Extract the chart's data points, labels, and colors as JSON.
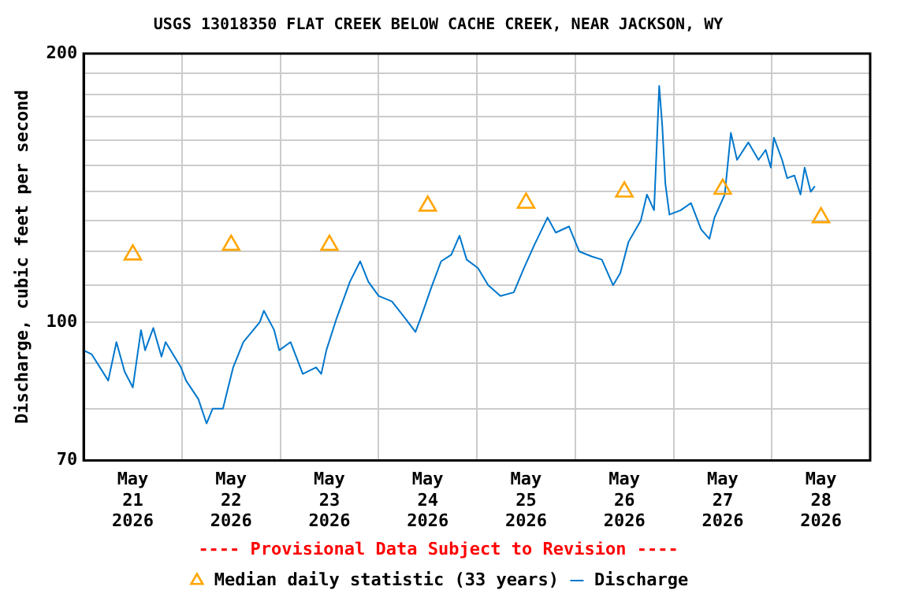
{
  "chart_data": {
    "type": "line",
    "title": "USGS 13018350 FLAT CREEK BELOW CACHE CREEK, NEAR JACKSON, WY",
    "ylabel": "Discharge, cubic feet per second",
    "annotations": [
      "---- Provisional Data Subject to Revision ----"
    ],
    "log": "y",
    "grid": true,
    "legend": "bottom",
    "xlim": [
      "2026-05-21T00:00",
      "2026-05-29T00:00"
    ],
    "xticks": [
      {
        "value": "2026-05-21T12:00",
        "label": "May\n21\n2026"
      },
      {
        "value": "2026-05-22T00:00",
        "label": null
      },
      {
        "value": "2026-05-22T12:00",
        "label": "May\n22\n2026"
      },
      {
        "value": "2026-05-23T00:00",
        "label": null
      },
      {
        "value": "2026-05-23T12:00",
        "label": "May\n23\n2026"
      },
      {
        "value": "2026-05-24T00:00",
        "label": null
      },
      {
        "value": "2026-05-24T12:00",
        "label": "May\n24\n2026"
      },
      {
        "value": "2026-05-25T00:00",
        "label": null
      },
      {
        "value": "2026-05-25T12:00",
        "label": "May\n25\n2026"
      },
      {
        "value": "2026-05-26T00:00",
        "label": null
      },
      {
        "value": "2026-05-26T12:00",
        "label": "May\n26\n2026"
      },
      {
        "value": "2026-05-27T00:00",
        "label": null
      },
      {
        "value": "2026-05-27T12:00",
        "label": "May\n27\n2026"
      },
      {
        "value": "2026-05-28T00:00",
        "label": null
      },
      {
        "value": "2026-05-28T12:00",
        "label": "May\n28\n2026"
      }
    ],
    "ylim": [
      70,
      200
    ],
    "yticks": [
      70,
      {
        "value": 80,
        "label": null
      },
      {
        "value": 90,
        "label": null
      },
      100,
      {
        "value": 110,
        "label": null
      },
      {
        "value": 120,
        "label": null
      },
      {
        "value": 130,
        "label": null
      },
      {
        "value": 140,
        "label": null
      },
      {
        "value": 150,
        "label": null
      },
      {
        "value": 160,
        "label": null
      },
      {
        "value": 170,
        "label": null
      },
      {
        "value": 180,
        "label": null
      },
      {
        "value": 190,
        "label": null
      },
      200
    ],
    "series": [
      {
        "name": "Median daily statistic (33 years)",
        "type": "scatter",
        "marker": "triangle",
        "color": "#ffa500",
        "x": [
          "2026-05-21T12:00",
          "2026-05-22T12:00",
          "2026-05-23T12:00",
          "2026-05-24T12:00",
          "2026-05-25T12:00",
          "2026-05-26T12:00",
          "2026-05-27T12:00",
          "2026-05-28T12:00"
        ],
        "values": [
          119,
          122,
          122,
          135,
          136,
          140,
          141,
          131
        ]
      },
      {
        "name": "Discharge",
        "type": "line",
        "marker": "none",
        "color": "#0077cc",
        "x": [
          "2026-05-21T00:00",
          "2026-05-21T02:00",
          "2026-05-21T06:00",
          "2026-05-21T08:00",
          "2026-05-21T10:00",
          "2026-05-21T12:00",
          "2026-05-21T14:00",
          "2026-05-21T15:00",
          "2026-05-21T17:00",
          "2026-05-21T19:00",
          "2026-05-21T20:00",
          "2026-05-21T23:45",
          "2026-05-22T01:00",
          "2026-05-22T04:00",
          "2026-05-22T06:00",
          "2026-05-22T07:30",
          "2026-05-22T10:00",
          "2026-05-22T12:30",
          "2026-05-22T15:00",
          "2026-05-22T19:00",
          "2026-05-22T20:00",
          "2026-05-22T22:30",
          "2026-05-22T23:45",
          "2026-05-23T02:30",
          "2026-05-23T05:30",
          "2026-05-23T08:45",
          "2026-05-23T10:00",
          "2026-05-23T11:15",
          "2026-05-23T13:45",
          "2026-05-23T17:00",
          "2026-05-23T19:30",
          "2026-05-23T21:30",
          "2026-05-24T00:00",
          "2026-05-24T03:15",
          "2026-05-24T06:30",
          "2026-05-24T09:00",
          "2026-05-24T10:15",
          "2026-05-24T12:45",
          "2026-05-24T15:15",
          "2026-05-24T17:45",
          "2026-05-24T19:45",
          "2026-05-24T21:30",
          "2026-05-25T00:15",
          "2026-05-25T02:45",
          "2026-05-25T05:45",
          "2026-05-25T09:00",
          "2026-05-25T11:30",
          "2026-05-25T14:00",
          "2026-05-25T17:15",
          "2026-05-25T19:15",
          "2026-05-25T22:30",
          "2026-05-26T01:00",
          "2026-05-26T04:00",
          "2026-05-26T06:30",
          "2026-05-26T09:15",
          "2026-05-26T11:00",
          "2026-05-26T13:00",
          "2026-05-26T16:00",
          "2026-05-26T17:30",
          "2026-05-26T19:15",
          "2026-05-26T20:30",
          "2026-05-26T21:15",
          "2026-05-26T22:00",
          "2026-05-26T23:00",
          "2026-05-27T01:45",
          "2026-05-27T04:15",
          "2026-05-27T06:45",
          "2026-05-27T08:45",
          "2026-05-27T10:00",
          "2026-05-27T12:30",
          "2026-05-27T14:00",
          "2026-05-27T15:30",
          "2026-05-27T18:15",
          "2026-05-27T20:45",
          "2026-05-27T22:30",
          "2026-05-27T23:45",
          "2026-05-28T00:30",
          "2026-05-28T02:30",
          "2026-05-28T03:45",
          "2026-05-28T05:30",
          "2026-05-28T07:00",
          "2026-05-28T08:00",
          "2026-05-28T09:30",
          "2026-05-28T10:30"
        ],
        "values": [
          93,
          92,
          86,
          95,
          88,
          84.5,
          98,
          93,
          98.5,
          91.5,
          95,
          89,
          86,
          82,
          77,
          80,
          80,
          89,
          95,
          100,
          103,
          98,
          93,
          95,
          87.5,
          89,
          87.5,
          93,
          101,
          111,
          117,
          111,
          107,
          105.5,
          101,
          97.5,
          101,
          109,
          117,
          119,
          125,
          117.5,
          115,
          110,
          107,
          108,
          115,
          122,
          131,
          126,
          128,
          120,
          118.5,
          117.5,
          110,
          113.5,
          123,
          130,
          139,
          133.5,
          184,
          166,
          143,
          132,
          133.5,
          136,
          127,
          124,
          131,
          139,
          163,
          152,
          159,
          152,
          156,
          149,
          161,
          152,
          145,
          146,
          139,
          149,
          140,
          142
        ]
      }
    ]
  }
}
